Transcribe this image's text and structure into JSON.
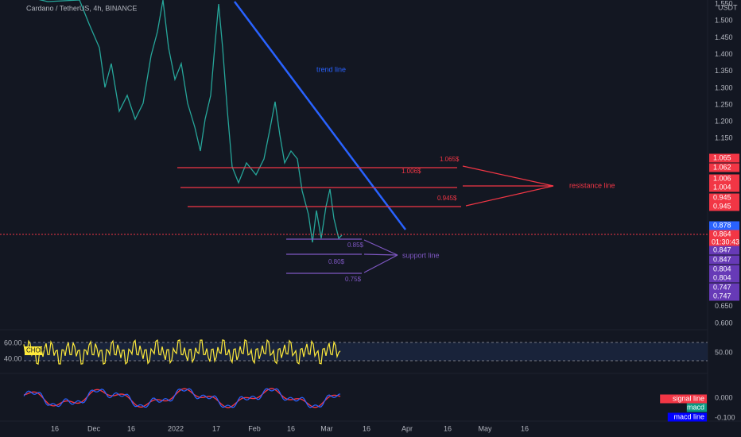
{
  "header": {
    "title": "Cardano / TetherUS, 4h, BINANCE"
  },
  "price_axis": {
    "currency": "USDT",
    "labels": [
      "1.550",
      "1.500",
      "1.450",
      "1.400",
      "1.350",
      "1.300",
      "1.250",
      "1.200",
      "1.150",
      "0.650",
      "0.600"
    ]
  },
  "price_tags": [
    {
      "label": "1.065",
      "color": "#f23645"
    },
    {
      "label": "1.062",
      "color": "#f23645"
    },
    {
      "label": "1.006",
      "color": "#f23645"
    },
    {
      "label": "1.004",
      "color": "#f23645"
    },
    {
      "label": "0.945",
      "color": "#f23645"
    },
    {
      "label": "0.945",
      "color": "#f23645"
    },
    {
      "label": "0.878",
      "color": "#2962ff"
    },
    {
      "label": "0.864",
      "sub": "01:30:43",
      "color": "#f23645"
    },
    {
      "label": "0.847",
      "color": "#673ab7"
    },
    {
      "label": "0.847",
      "color": "#673ab7"
    },
    {
      "label": "0.804",
      "color": "#673ab7"
    },
    {
      "label": "0.804",
      "color": "#673ab7"
    },
    {
      "label": "0.747",
      "color": "#673ab7"
    },
    {
      "label": "0.747",
      "color": "#673ab7"
    }
  ],
  "time_axis": {
    "labels": [
      "16",
      "Dec",
      "16",
      "2022",
      "17",
      "Feb",
      "16",
      "Mar",
      "16",
      "Apr",
      "16",
      "May",
      "16"
    ]
  },
  "annotations": {
    "trend_line": "trend line",
    "resistance": {
      "label": "resistance line",
      "levels": [
        "1.065$",
        "1.006$",
        "0.945$"
      ]
    },
    "support": {
      "label": "support line",
      "levels": [
        "0.85$",
        "0.80$",
        "0.75$"
      ]
    }
  },
  "chop": {
    "label": "CHOP",
    "levels": [
      "60.00",
      "40.00"
    ],
    "right": "50.00"
  },
  "macd": {
    "right": [
      "0.000",
      "-0.100"
    ],
    "legend": [
      {
        "label": "signal line",
        "color": "#f23645"
      },
      {
        "label": "macd",
        "color": "#089981"
      },
      {
        "label": "macd line",
        "color": "#0000ff"
      }
    ]
  }
}
